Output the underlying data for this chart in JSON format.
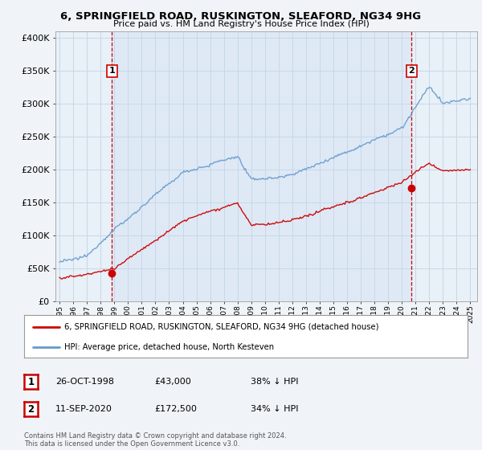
{
  "title": "6, SPRINGFIELD ROAD, RUSKINGTON, SLEAFORD, NG34 9HG",
  "subtitle": "Price paid vs. HM Land Registry's House Price Index (HPI)",
  "legend_label_red": "6, SPRINGFIELD ROAD, RUSKINGTON, SLEAFORD, NG34 9HG (detached house)",
  "legend_label_blue": "HPI: Average price, detached house, North Kesteven",
  "annotation1_date": "26-OCT-1998",
  "annotation1_price": "£43,000",
  "annotation1_hpi": "38% ↓ HPI",
  "annotation2_date": "11-SEP-2020",
  "annotation2_price": "£172,500",
  "annotation2_hpi": "34% ↓ HPI",
  "copyright": "Contains HM Land Registry data © Crown copyright and database right 2024.\nThis data is licensed under the Open Government Licence v3.0.",
  "background_color": "#f0f4f8",
  "plot_bg_color": "#e8f0f8",
  "shaded_color": "#dce8f5",
  "red_color": "#cc0000",
  "blue_color": "#6699cc",
  "grid_color": "#c8d8e8",
  "sale1_year": 1998.82,
  "sale1_price": 43000,
  "sale2_year": 2020.7,
  "sale2_price": 172500
}
